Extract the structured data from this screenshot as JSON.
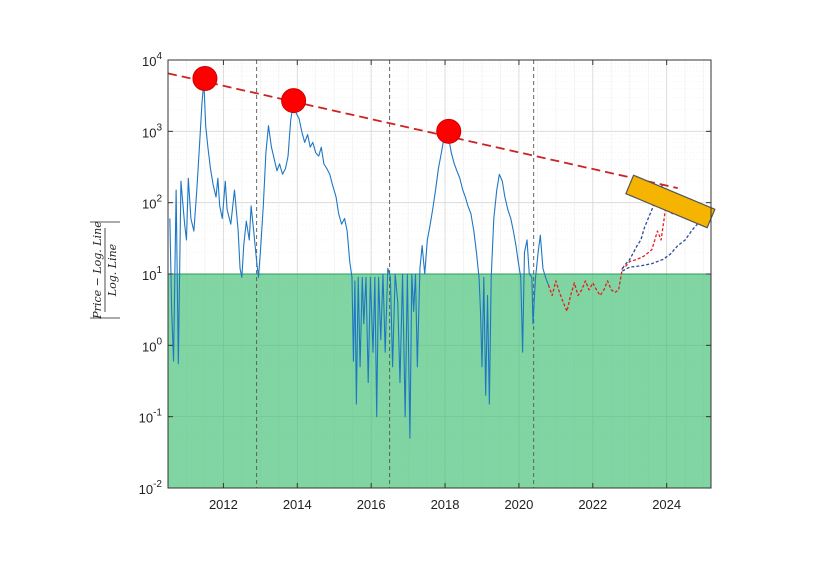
{
  "chart_data": {
    "type": "line",
    "title": "",
    "xlabel": "",
    "ylabel": {
      "numerator": "Price − Log. Line",
      "denominator": "Log. Line"
    },
    "xlim": [
      2010.5,
      2025.2
    ],
    "ylim": [
      0.01,
      10000
    ],
    "yscale": "log",
    "grid": true,
    "x_ticks": [
      2012,
      2014,
      2016,
      2018,
      2020,
      2022,
      2024
    ],
    "y_ticks": [
      {
        "base": "10",
        "exp": "-2",
        "value": 0.01
      },
      {
        "base": "10",
        "exp": "-1",
        "value": 0.1
      },
      {
        "base": "10",
        "exp": "0",
        "value": 1
      },
      {
        "base": "10",
        "exp": "1",
        "value": 10
      },
      {
        "base": "10",
        "exp": "2",
        "value": 100
      },
      {
        "base": "10",
        "exp": "3",
        "value": 1000
      },
      {
        "base": "10",
        "exp": "4",
        "value": 10000
      }
    ],
    "threshold_band": {
      "ymin": 0.01,
      "ymax": 10,
      "color": "#3cbf72"
    },
    "vertical_markers": [
      2012.9,
      2016.5,
      2020.4
    ],
    "peak_markers": [
      {
        "x": 2011.5,
        "y": 5500
      },
      {
        "x": 2013.9,
        "y": 2700
      },
      {
        "x": 2018.1,
        "y": 1000
      }
    ],
    "trend_line": {
      "x": [
        2010.5,
        2024.3
      ],
      "y": [
        6500,
        160
      ],
      "color": "#cc2222",
      "dash": true
    },
    "projection_box": {
      "x": [
        2023.0,
        2025.2
      ],
      "y": [
        180,
        60
      ],
      "color": "#f5b400"
    },
    "series": [
      {
        "color": "#1f77c4",
        "style": "solid",
        "points": [
          [
            2010.55,
            60
          ],
          [
            2010.6,
            3
          ],
          [
            2010.65,
            0.6
          ],
          [
            2010.72,
            150
          ],
          [
            2010.78,
            0.55
          ],
          [
            2010.85,
            200
          ],
          [
            2010.95,
            50
          ],
          [
            2011.0,
            30
          ],
          [
            2011.05,
            220
          ],
          [
            2011.12,
            60
          ],
          [
            2011.2,
            40
          ],
          [
            2011.28,
            150
          ],
          [
            2011.35,
            600
          ],
          [
            2011.42,
            2500
          ],
          [
            2011.47,
            5000
          ],
          [
            2011.52,
            1200
          ],
          [
            2011.58,
            600
          ],
          [
            2011.65,
            300
          ],
          [
            2011.72,
            180
          ],
          [
            2011.8,
            120
          ],
          [
            2011.85,
            220
          ],
          [
            2011.9,
            90
          ],
          [
            2011.97,
            60
          ],
          [
            2012.05,
            200
          ],
          [
            2012.1,
            80
          ],
          [
            2012.2,
            50
          ],
          [
            2012.3,
            150
          ],
          [
            2012.4,
            40
          ],
          [
            2012.45,
            12
          ],
          [
            2012.5,
            9
          ],
          [
            2012.55,
            25
          ],
          [
            2012.62,
            55
          ],
          [
            2012.7,
            30
          ],
          [
            2012.75,
            90
          ],
          [
            2012.82,
            40
          ],
          [
            2012.9,
            15
          ],
          [
            2012.95,
            9
          ],
          [
            2013.0,
            20
          ],
          [
            2013.08,
            90
          ],
          [
            2013.15,
            500
          ],
          [
            2013.22,
            1200
          ],
          [
            2013.3,
            600
          ],
          [
            2013.38,
            400
          ],
          [
            2013.45,
            280
          ],
          [
            2013.52,
            350
          ],
          [
            2013.6,
            250
          ],
          [
            2013.68,
            300
          ],
          [
            2013.75,
            450
          ],
          [
            2013.82,
            1400
          ],
          [
            2013.9,
            2700
          ],
          [
            2013.97,
            1800
          ],
          [
            2014.05,
            1500
          ],
          [
            2014.12,
            1000
          ],
          [
            2014.2,
            700
          ],
          [
            2014.28,
            900
          ],
          [
            2014.35,
            600
          ],
          [
            2014.42,
            700
          ],
          [
            2014.5,
            500
          ],
          [
            2014.58,
            450
          ],
          [
            2014.65,
            600
          ],
          [
            2014.72,
            350
          ],
          [
            2014.8,
            300
          ],
          [
            2014.88,
            250
          ],
          [
            2014.95,
            180
          ],
          [
            2015.05,
            120
          ],
          [
            2015.12,
            70
          ],
          [
            2015.2,
            50
          ],
          [
            2015.28,
            60
          ],
          [
            2015.35,
            40
          ],
          [
            2015.42,
            15
          ],
          [
            2015.48,
            9
          ],
          [
            2015.52,
            0.6
          ],
          [
            2015.56,
            8
          ],
          [
            2015.6,
            0.15
          ],
          [
            2015.65,
            9
          ],
          [
            2015.7,
            0.5
          ],
          [
            2015.76,
            9
          ],
          [
            2015.8,
            2
          ],
          [
            2015.86,
            9
          ],
          [
            2015.92,
            0.3
          ],
          [
            2015.98,
            9
          ],
          [
            2016.05,
            0.8
          ],
          [
            2016.1,
            9
          ],
          [
            2016.15,
            0.1
          ],
          [
            2016.2,
            9
          ],
          [
            2016.26,
            1.2
          ],
          [
            2016.32,
            10
          ],
          [
            2016.38,
            0.8
          ],
          [
            2016.45,
            12
          ],
          [
            2016.52,
            9
          ],
          [
            2016.58,
            0.5
          ],
          [
            2016.65,
            10
          ],
          [
            2016.72,
            4
          ],
          [
            2016.78,
            0.3
          ],
          [
            2016.85,
            10
          ],
          [
            2016.92,
            0.1
          ],
          [
            2016.98,
            10
          ],
          [
            2017.05,
            0.05
          ],
          [
            2017.1,
            10
          ],
          [
            2017.15,
            3
          ],
          [
            2017.2,
            10
          ],
          [
            2017.25,
            0.5
          ],
          [
            2017.32,
            12
          ],
          [
            2017.38,
            25
          ],
          [
            2017.45,
            10
          ],
          [
            2017.52,
            30
          ],
          [
            2017.6,
            50
          ],
          [
            2017.68,
            90
          ],
          [
            2017.75,
            160
          ],
          [
            2017.82,
            300
          ],
          [
            2017.9,
            500
          ],
          [
            2017.97,
            800
          ],
          [
            2018.03,
            1000
          ],
          [
            2018.1,
            800
          ],
          [
            2018.17,
            500
          ],
          [
            2018.25,
            350
          ],
          [
            2018.32,
            280
          ],
          [
            2018.4,
            220
          ],
          [
            2018.48,
            150
          ],
          [
            2018.55,
            120
          ],
          [
            2018.62,
            90
          ],
          [
            2018.7,
            70
          ],
          [
            2018.78,
            40
          ],
          [
            2018.85,
            20
          ],
          [
            2018.92,
            9
          ],
          [
            2018.96,
            3
          ],
          [
            2019.0,
            0.5
          ],
          [
            2019.05,
            9
          ],
          [
            2019.1,
            0.2
          ],
          [
            2019.15,
            5
          ],
          [
            2019.2,
            0.15
          ],
          [
            2019.25,
            9
          ],
          [
            2019.32,
            60
          ],
          [
            2019.4,
            150
          ],
          [
            2019.47,
            250
          ],
          [
            2019.55,
            200
          ],
          [
            2019.62,
            120
          ],
          [
            2019.7,
            80
          ],
          [
            2019.78,
            60
          ],
          [
            2019.85,
            40
          ],
          [
            2019.92,
            25
          ],
          [
            2019.98,
            15
          ],
          [
            2020.05,
            9
          ],
          [
            2020.1,
            0.8
          ],
          [
            2020.15,
            20
          ],
          [
            2020.22,
            30
          ],
          [
            2020.28,
            10
          ],
          [
            2020.35,
            9
          ],
          [
            2020.38,
            2
          ],
          [
            2020.45,
            9
          ],
          [
            2020.52,
            20
          ],
          [
            2020.58,
            35
          ],
          [
            2020.65,
            12
          ],
          [
            2020.72,
            9
          ],
          [
            2020.8,
            7
          ]
        ]
      },
      {
        "color": "#e02020",
        "style": "dashed",
        "points": [
          [
            2020.8,
            7
          ],
          [
            2020.9,
            5
          ],
          [
            2021.0,
            8
          ],
          [
            2021.1,
            5.5
          ],
          [
            2021.2,
            4
          ],
          [
            2021.3,
            3
          ],
          [
            2021.4,
            5
          ],
          [
            2021.5,
            7.5
          ],
          [
            2021.6,
            5
          ],
          [
            2021.7,
            6
          ],
          [
            2021.8,
            8
          ],
          [
            2021.9,
            6
          ],
          [
            2022.0,
            7.5
          ],
          [
            2022.1,
            6
          ],
          [
            2022.2,
            5
          ],
          [
            2022.3,
            6
          ],
          [
            2022.4,
            8
          ],
          [
            2022.5,
            6
          ],
          [
            2022.6,
            5.5
          ],
          [
            2022.7,
            6
          ],
          [
            2022.8,
            12
          ],
          [
            2022.9,
            13
          ],
          [
            2023.0,
            15
          ],
          [
            2023.2,
            16
          ],
          [
            2023.4,
            18
          ],
          [
            2023.6,
            22
          ],
          [
            2023.75,
            40
          ],
          [
            2023.85,
            30
          ],
          [
            2023.95,
            70
          ],
          [
            2024.0,
            110
          ],
          [
            2024.05,
            80
          ],
          [
            2024.15,
            70
          ],
          [
            2024.25,
            130
          ],
          [
            2024.3,
            100
          ]
        ]
      },
      {
        "color": "#2a4a9a",
        "style": "dashed",
        "points": [
          [
            2022.8,
            12
          ],
          [
            2022.9,
            14
          ],
          [
            2023.0,
            16
          ],
          [
            2023.1,
            20
          ],
          [
            2023.2,
            25
          ],
          [
            2023.3,
            30
          ],
          [
            2023.4,
            45
          ],
          [
            2023.5,
            60
          ],
          [
            2023.6,
            80
          ],
          [
            2023.7,
            110
          ],
          [
            2023.8,
            150
          ],
          [
            2023.9,
            180
          ]
        ]
      },
      {
        "color": "#2a4a9a",
        "style": "dashed",
        "points": [
          [
            2022.8,
            11
          ],
          [
            2023.0,
            12.5
          ],
          [
            2023.3,
            13
          ],
          [
            2023.6,
            14
          ],
          [
            2023.9,
            16
          ],
          [
            2024.1,
            19
          ],
          [
            2024.3,
            25
          ],
          [
            2024.5,
            30
          ],
          [
            2024.7,
            42
          ],
          [
            2024.9,
            55
          ],
          [
            2025.1,
            75
          ],
          [
            2025.2,
            80
          ]
        ]
      }
    ]
  }
}
